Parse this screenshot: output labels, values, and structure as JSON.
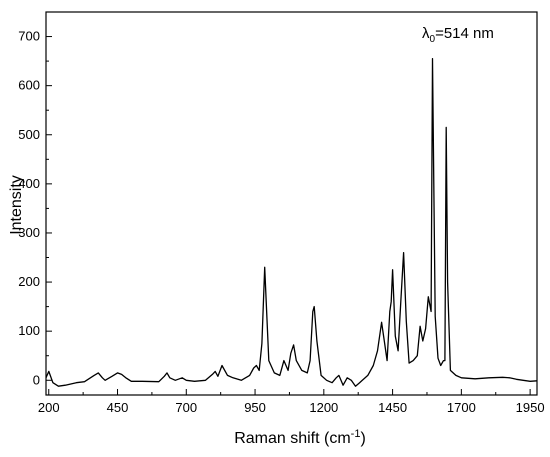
{
  "chart_data": {
    "type": "line",
    "xlabel": "Raman shift (cm",
    "xlabel_sup": "-1",
    "xlabel_close": ")",
    "ylabel": "Intensity",
    "annotation": {
      "symbol": "λ",
      "sub": "0",
      "text": "=514 nm"
    },
    "xlim": [
      190,
      1975
    ],
    "ylim": [
      -30,
      750
    ],
    "xticks": [
      200,
      450,
      700,
      950,
      1200,
      1450,
      1700,
      1950
    ],
    "yticks": [
      0,
      100,
      200,
      300,
      400,
      500,
      600,
      700
    ],
    "series": [
      {
        "x": [
          190,
          200,
          215,
          235,
          260,
          300,
          330,
          365,
          380,
          395,
          405,
          430,
          450,
          465,
          480,
          500,
          540,
          600,
          620,
          630,
          640,
          660,
          685,
          700,
          730,
          770,
          795,
          805,
          815,
          830,
          850,
          870,
          900,
          930,
          945,
          955,
          965,
          975,
          985,
          1000,
          1020,
          1040,
          1055,
          1070,
          1080,
          1090,
          1100,
          1120,
          1140,
          1150,
          1160,
          1165,
          1175,
          1190,
          1210,
          1230,
          1245,
          1255,
          1270,
          1285,
          1300,
          1315,
          1330,
          1360,
          1380,
          1395,
          1410,
          1420,
          1430,
          1440,
          1445,
          1450,
          1460,
          1470,
          1480,
          1490,
          1500,
          1510,
          1525,
          1540,
          1550,
          1560,
          1570,
          1580,
          1590,
          1595,
          1600,
          1605,
          1615,
          1625,
          1635,
          1640,
          1645,
          1650,
          1660,
          1680,
          1700,
          1750,
          1800,
          1850,
          1875,
          1900,
          1925,
          1950,
          1975
        ],
        "y": [
          5,
          18,
          -5,
          -12,
          -10,
          -5,
          -3,
          10,
          15,
          5,
          0,
          8,
          15,
          12,
          5,
          -2,
          -2,
          -3,
          8,
          15,
          5,
          0,
          5,
          0,
          -2,
          0,
          12,
          18,
          8,
          30,
          10,
          5,
          0,
          10,
          25,
          30,
          20,
          75,
          230,
          40,
          15,
          10,
          40,
          20,
          55,
          72,
          40,
          20,
          15,
          40,
          140,
          150,
          80,
          10,
          0,
          -5,
          5,
          10,
          -10,
          5,
          0,
          -12,
          -5,
          10,
          30,
          60,
          118,
          80,
          40,
          140,
          160,
          225,
          90,
          60,
          160,
          260,
          120,
          35,
          40,
          50,
          110,
          80,
          105,
          170,
          140,
          655,
          400,
          130,
          45,
          30,
          40,
          40,
          515,
          200,
          20,
          10,
          5,
          3,
          5,
          6,
          5,
          2,
          0,
          -2,
          -1
        ]
      }
    ]
  }
}
